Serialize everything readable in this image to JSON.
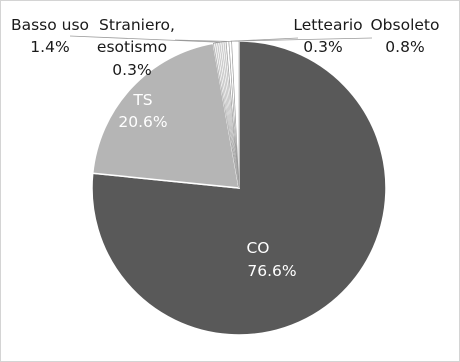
{
  "chart_data": {
    "type": "pie",
    "title": "",
    "slices": [
      {
        "label": "CO",
        "value": 76.6,
        "display": "76.6%",
        "color": "#595959",
        "text_color": "#ffffff"
      },
      {
        "label": "TS",
        "value": 20.6,
        "display": "20.6%",
        "color": "#b5b5b5",
        "text_color": "#ffffff"
      },
      {
        "label": "Basso uso",
        "value": 1.4,
        "display": "1.4%",
        "color": "#f0f0f0",
        "text_color": "#1a1a1a"
      },
      {
        "label": "Straniero, esotismo",
        "value": 0.3,
        "display": "0.3%",
        "color": "#ffffff",
        "text_color": "#1a1a1a"
      },
      {
        "label": "Letteario",
        "value": 0.3,
        "display": "0.3%",
        "color": "#ffffff",
        "text_color": "#1a1a1a"
      },
      {
        "label": "Obsoleto",
        "value": 0.8,
        "display": "0.8%",
        "color": "#ffffff",
        "text_color": "#1a1a1a"
      }
    ],
    "legend": "none",
    "outline_color": "#ffffff"
  }
}
